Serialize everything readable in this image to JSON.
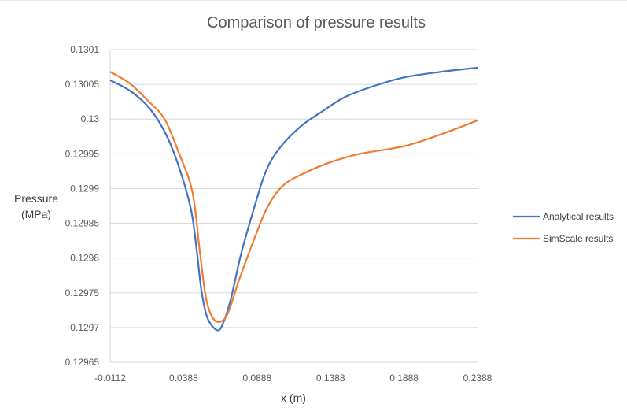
{
  "chart_data": {
    "type": "line",
    "title": "Comparison of pressure results",
    "xlabel": "x (m)",
    "ylabel_lines": [
      "Pressure",
      "(MPa)"
    ],
    "xlim": [
      -0.0112,
      0.2388
    ],
    "ylim": [
      0.12965,
      0.1301
    ],
    "x_tick_labels": [
      "-0.0112",
      "0.0388",
      "0.0888",
      "0.1388",
      "0.1888",
      "0.2388"
    ],
    "y_tick_labels": [
      "0.12965",
      "0.1297",
      "0.12975",
      "0.1298",
      "0.12985",
      "0.1299",
      "0.12995",
      "0.13",
      "0.13005",
      "0.1301"
    ],
    "grid": true,
    "legend_position": "right",
    "series": [
      {
        "name": "Analytical results",
        "color": "#4472C4",
        "points": [
          [
            -0.0112,
            0.130056
          ],
          [
            0.0028,
            0.13004
          ],
          [
            0.0158,
            0.130015
          ],
          [
            0.0268,
            0.129978
          ],
          [
            0.0358,
            0.12993
          ],
          [
            0.0438,
            0.12987
          ],
          [
            0.0478,
            0.12981
          ],
          [
            0.0508,
            0.129755
          ],
          [
            0.0548,
            0.129715
          ],
          [
            0.0608,
            0.129697
          ],
          [
            0.0648,
            0.129702
          ],
          [
            0.0708,
            0.12974
          ],
          [
            0.0778,
            0.129805
          ],
          [
            0.0858,
            0.129865
          ],
          [
            0.0948,
            0.129925
          ],
          [
            0.1048,
            0.12996
          ],
          [
            0.1188,
            0.12999
          ],
          [
            0.1338,
            0.130012
          ],
          [
            0.1488,
            0.130032
          ],
          [
            0.1688,
            0.130048
          ],
          [
            0.1888,
            0.13006
          ],
          [
            0.2138,
            0.130068
          ],
          [
            0.2388,
            0.130074
          ]
        ]
      },
      {
        "name": "SimScale results",
        "color": "#ED7D31",
        "points": [
          [
            -0.0112,
            0.130068
          ],
          [
            0.0018,
            0.130052
          ],
          [
            0.0138,
            0.130028
          ],
          [
            0.0258,
            0.13
          ],
          [
            0.0358,
            0.12995
          ],
          [
            0.0448,
            0.129895
          ],
          [
            0.0498,
            0.12981
          ],
          [
            0.0538,
            0.129745
          ],
          [
            0.0578,
            0.129717
          ],
          [
            0.0628,
            0.129708
          ],
          [
            0.0688,
            0.12972
          ],
          [
            0.0768,
            0.12977
          ],
          [
            0.0868,
            0.129827
          ],
          [
            0.0958,
            0.129873
          ],
          [
            0.1068,
            0.129905
          ],
          [
            0.1238,
            0.129925
          ],
          [
            0.1388,
            0.129938
          ],
          [
            0.1588,
            0.12995
          ],
          [
            0.1888,
            0.129961
          ],
          [
            0.2138,
            0.129978
          ],
          [
            0.2388,
            0.129998
          ]
        ]
      }
    ]
  }
}
